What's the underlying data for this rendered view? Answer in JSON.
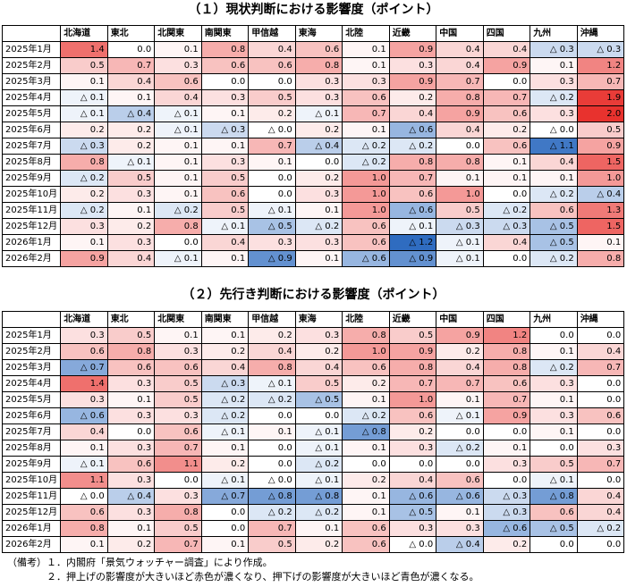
{
  "table1": {
    "title": "（１）現状判断における影響度（ポイント）",
    "columns": [
      "北海道",
      "東北",
      "北関東",
      "南関東",
      "甲信越",
      "東海",
      "北陸",
      "近畿",
      "中国",
      "四国",
      "九州",
      "沖縄"
    ],
    "rows": [
      {
        "label": "2025年1月",
        "values": [
          1.4,
          0.0,
          0.1,
          0.8,
          0.4,
          0.6,
          0.1,
          0.9,
          0.4,
          0.4,
          -0.3,
          -0.3
        ]
      },
      {
        "label": "2025年2月",
        "values": [
          0.5,
          0.7,
          0.3,
          0.6,
          0.6,
          0.8,
          0.1,
          0.3,
          0.4,
          0.9,
          0.1,
          1.2
        ]
      },
      {
        "label": "2025年3月",
        "values": [
          0.1,
          0.4,
          0.6,
          0.0,
          0.0,
          0.3,
          0.3,
          0.9,
          0.7,
          0.0,
          0.3,
          0.7
        ]
      },
      {
        "label": "2025年4月",
        "values": [
          -0.1,
          0.1,
          0.4,
          0.3,
          0.5,
          0.3,
          0.6,
          0.2,
          0.8,
          0.7,
          -0.2,
          1.9
        ]
      },
      {
        "label": "2025年5月",
        "values": [
          -0.1,
          -0.4,
          -0.1,
          0.1,
          0.2,
          -0.1,
          0.7,
          0.4,
          0.9,
          0.6,
          0.3,
          2.0
        ]
      },
      {
        "label": "2025年6月",
        "values": [
          0.2,
          0.2,
          -0.1,
          -0.3,
          -0.0,
          0.2,
          0.1,
          -0.6,
          0.4,
          0.2,
          -0.0,
          0.5
        ]
      },
      {
        "label": "2025年7月",
        "values": [
          -0.3,
          0.2,
          0.1,
          0.1,
          0.7,
          -0.4,
          -0.2,
          -0.2,
          0.0,
          0.6,
          -1.1,
          0.9
        ]
      },
      {
        "label": "2025年8月",
        "values": [
          0.8,
          -0.1,
          0.1,
          0.3,
          0.1,
          0.0,
          -0.2,
          0.8,
          0.8,
          0.1,
          0.4,
          1.5
        ]
      },
      {
        "label": "2025年9月",
        "values": [
          -0.2,
          0.5,
          0.1,
          0.5,
          0.0,
          0.2,
          1.0,
          0.7,
          0.1,
          0.1,
          0.1,
          1.0
        ]
      },
      {
        "label": "2025年10月",
        "values": [
          0.2,
          0.3,
          0.1,
          0.6,
          0.0,
          0.3,
          1.0,
          0.6,
          1.0,
          0.0,
          -0.2,
          -0.4
        ]
      },
      {
        "label": "2025年11月",
        "values": [
          -0.2,
          0.1,
          -0.2,
          0.5,
          -0.1,
          0.1,
          1.0,
          -0.6,
          0.5,
          -0.2,
          0.6,
          1.3
        ]
      },
      {
        "label": "2025年12月",
        "values": [
          0.3,
          0.2,
          0.8,
          -0.1,
          -0.5,
          -0.2,
          0.6,
          -0.1,
          -0.3,
          -0.3,
          -0.5,
          1.5
        ]
      },
      {
        "label": "2026年1月",
        "values": [
          0.1,
          0.3,
          0.0,
          0.4,
          0.3,
          0.3,
          0.6,
          -1.2,
          -0.1,
          0.4,
          -0.5,
          0.1
        ]
      },
      {
        "label": "2026年2月",
        "values": [
          0.9,
          0.4,
          -0.1,
          0.1,
          -0.9,
          0.1,
          -0.6,
          -0.9,
          -0.1,
          0.0,
          -0.2,
          0.8
        ]
      }
    ]
  },
  "table2": {
    "title": "（２）先行き判断における影響度（ポイント）",
    "columns": [
      "北海道",
      "東北",
      "北関東",
      "南関東",
      "甲信越",
      "東海",
      "北陸",
      "近畿",
      "中国",
      "四国",
      "九州",
      "沖縄"
    ],
    "rows": [
      {
        "label": "2025年1月",
        "values": [
          0.3,
          0.5,
          0.1,
          0.1,
          0.2,
          0.3,
          0.8,
          0.5,
          0.9,
          1.2,
          0.0,
          0.0
        ]
      },
      {
        "label": "2025年2月",
        "values": [
          0.6,
          0.8,
          0.3,
          0.2,
          0.4,
          0.2,
          1.0,
          0.9,
          0.2,
          0.8,
          0.1,
          0.4
        ]
      },
      {
        "label": "2025年3月",
        "values": [
          -0.7,
          0.6,
          0.6,
          0.4,
          0.8,
          0.4,
          0.6,
          0.8,
          0.4,
          0.8,
          -0.2,
          0.7
        ]
      },
      {
        "label": "2025年4月",
        "values": [
          1.4,
          0.3,
          0.5,
          -0.3,
          -0.1,
          0.5,
          0.2,
          0.7,
          0.7,
          0.6,
          0.3,
          0.0
        ]
      },
      {
        "label": "2025年5月",
        "values": [
          0.3,
          0.1,
          0.5,
          -0.2,
          -0.2,
          -0.5,
          0.1,
          1.0,
          0.1,
          0.7,
          0.1,
          0.0
        ]
      },
      {
        "label": "2025年6月",
        "values": [
          -0.6,
          0.3,
          0.3,
          -0.2,
          0.0,
          0.0,
          -0.2,
          0.6,
          -0.1,
          0.9,
          0.3,
          0.6
        ]
      },
      {
        "label": "2025年7月",
        "values": [
          0.4,
          0.0,
          0.6,
          -0.1,
          0.1,
          -0.1,
          -0.8,
          0.2,
          0.0,
          0.0,
          0.1,
          0.0
        ]
      },
      {
        "label": "2025年8月",
        "values": [
          0.1,
          0.3,
          0.7,
          0.1,
          0.0,
          -0.1,
          0.1,
          0.3,
          -0.2,
          0.1,
          0.0,
          0.3
        ]
      },
      {
        "label": "2025年9月",
        "values": [
          -0.1,
          0.6,
          1.1,
          0.2,
          0.0,
          -0.2,
          0.0,
          0.0,
          0.0,
          0.3,
          0.5,
          0.7
        ]
      },
      {
        "label": "2025年10月",
        "values": [
          1.1,
          0.3,
          0.0,
          -0.1,
          -0.0,
          -0.1,
          0.2,
          0.4,
          0.6,
          0.0,
          -0.1,
          0.0
        ]
      },
      {
        "label": "2025年11月",
        "values": [
          -0.0,
          -0.4,
          0.3,
          -0.7,
          -0.8,
          -0.8,
          0.1,
          -0.6,
          -0.6,
          -0.3,
          -0.8,
          0.4
        ]
      },
      {
        "label": "2025年12月",
        "values": [
          0.6,
          0.3,
          0.8,
          0.0,
          -0.2,
          -0.2,
          0.1,
          -0.5,
          0.1,
          -0.3,
          0.6,
          0.4
        ]
      },
      {
        "label": "2026年1月",
        "values": [
          0.8,
          0.1,
          0.5,
          0.0,
          0.7,
          0.1,
          0.6,
          0.3,
          0.3,
          -0.6,
          -0.5,
          -0.2
        ]
      },
      {
        "label": "2026年2月",
        "values": [
          0.1,
          0.2,
          0.7,
          0.1,
          0.5,
          0.2,
          0.6,
          -0.0,
          -0.4,
          0.2,
          0.0,
          0.0
        ]
      }
    ]
  },
  "neg_prefix": "△",
  "notes": {
    "line1": "（備考）１．内閣府「景気ウォッチャー調査」により作成。",
    "line2": "　　　　２．押上げの影響度が大きいほど赤色が濃くなり、押下げの影響度が大きいほど青色が濃くなる。"
  },
  "colors": {
    "positive": "#e8322e",
    "negative": "#2f6cc0"
  }
}
